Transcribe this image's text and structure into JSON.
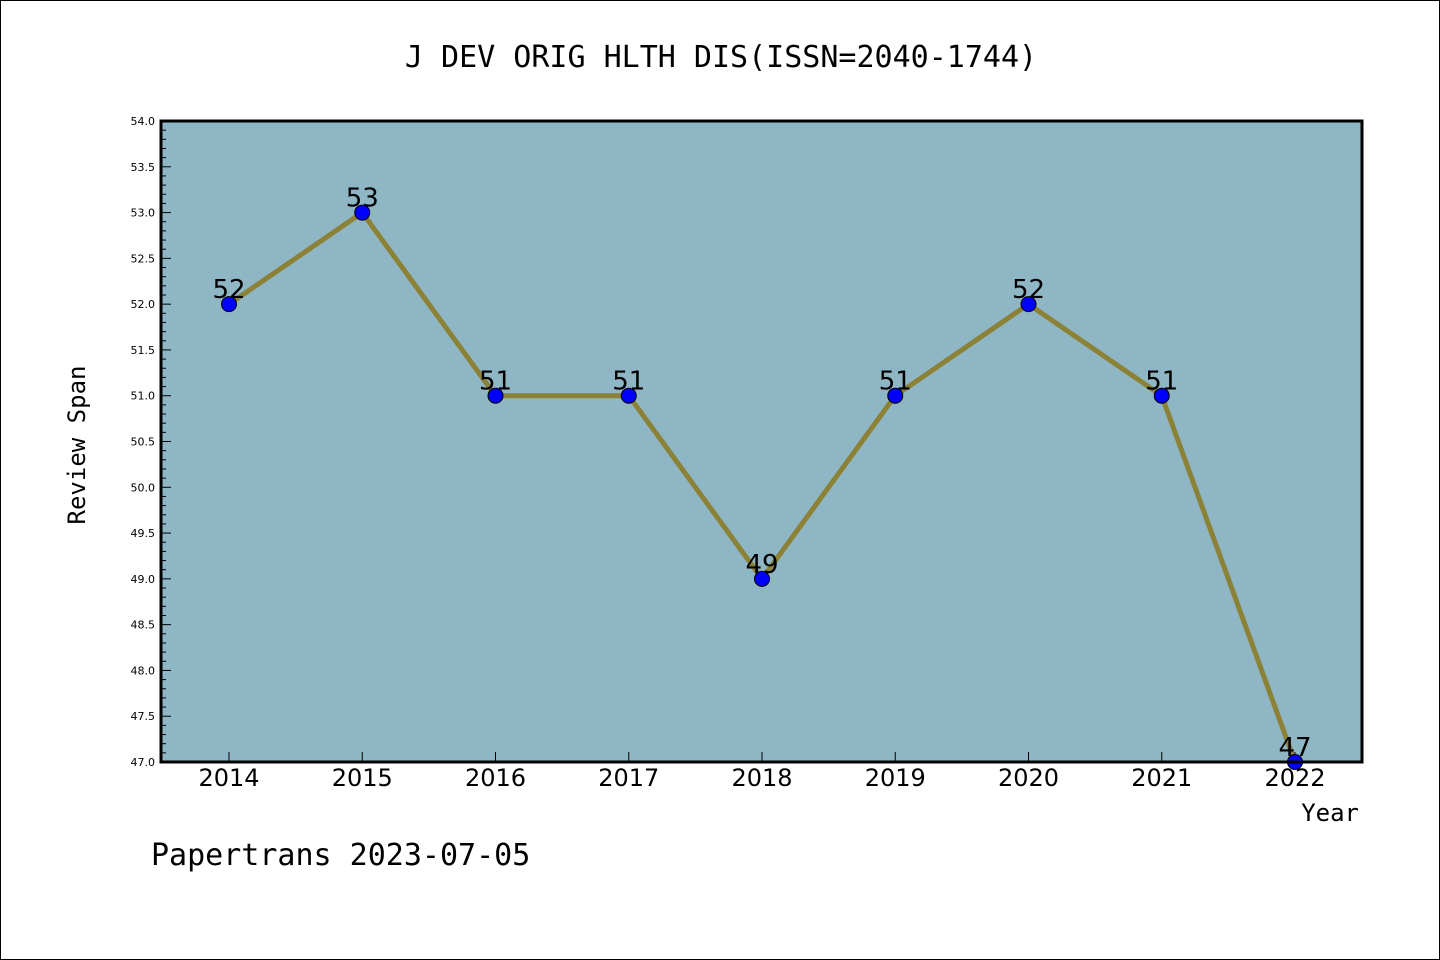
{
  "chart_data": {
    "type": "line",
    "title": "J DEV ORIG HLTH DIS(ISSN=2040-1744)",
    "xlabel": "Year",
    "ylabel": "Review Span",
    "categories": [
      "2014",
      "2015",
      "2016",
      "2017",
      "2018",
      "2019",
      "2020",
      "2021",
      "2022"
    ],
    "values": [
      52,
      53,
      51,
      51,
      49,
      51,
      52,
      51,
      47
    ],
    "data_labels": [
      "52",
      "53",
      "51",
      "51",
      "49",
      "51",
      "52",
      "51",
      "47"
    ],
    "ylim": [
      47.0,
      54.0
    ],
    "yticks": [
      47.0,
      47.5,
      48.0,
      48.5,
      49.0,
      49.5,
      50.0,
      50.5,
      51.0,
      51.5,
      52.0,
      52.5,
      53.0,
      53.5,
      54.0
    ],
    "ytick_labels": [
      "47.0",
      "47.5",
      "48.0",
      "48.5",
      "49.0",
      "49.5",
      "50.0",
      "50.5",
      "51.0",
      "51.5",
      "52.0",
      "52.5",
      "53.0",
      "53.5",
      "54.0"
    ],
    "grid": false,
    "colors": {
      "plot_background": "#8fb6c4",
      "line": "#8b8237",
      "marker": "#0000ff"
    }
  },
  "footer": {
    "text": "Papertrans 2023-07-05"
  }
}
